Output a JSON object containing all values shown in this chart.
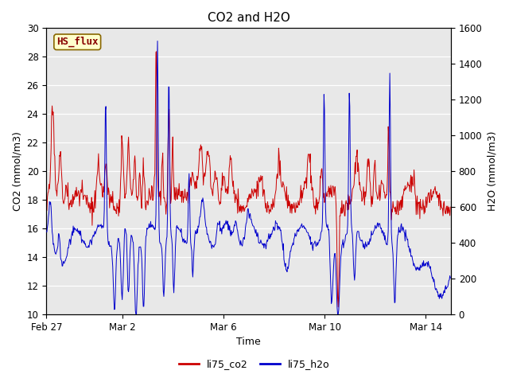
{
  "title": "CO2 and H2O",
  "xlabel": "Time",
  "ylabel_left": "CO2 (mmol/m3)",
  "ylabel_right": "H2O (mmol/m3)",
  "ylim_left": [
    10,
    30
  ],
  "ylim_right": [
    0,
    1600
  ],
  "yticks_left": [
    10,
    12,
    14,
    16,
    18,
    20,
    22,
    24,
    26,
    28,
    30
  ],
  "yticks_right": [
    0,
    200,
    400,
    600,
    800,
    1000,
    1200,
    1400,
    1600
  ],
  "xtick_labels": [
    "Feb 27",
    "Mar 2",
    "Mar 6",
    "Mar 10",
    "Mar 14"
  ],
  "color_co2": "#cc0000",
  "color_h2o": "#0000cc",
  "legend_label_co2": "li75_co2",
  "legend_label_h2o": "li75_h2o",
  "annotation_text": "HS_flux",
  "annotation_color_bg": "#ffffcc",
  "annotation_color_border": "#886600",
  "annotation_color_text": "#880000",
  "plot_bg_color": "#e8e8e8",
  "grid_color": "#ffffff",
  "title_fontsize": 11,
  "axis_fontsize": 9,
  "tick_fontsize": 8.5,
  "legend_fontsize": 9,
  "linewidth": 0.7
}
